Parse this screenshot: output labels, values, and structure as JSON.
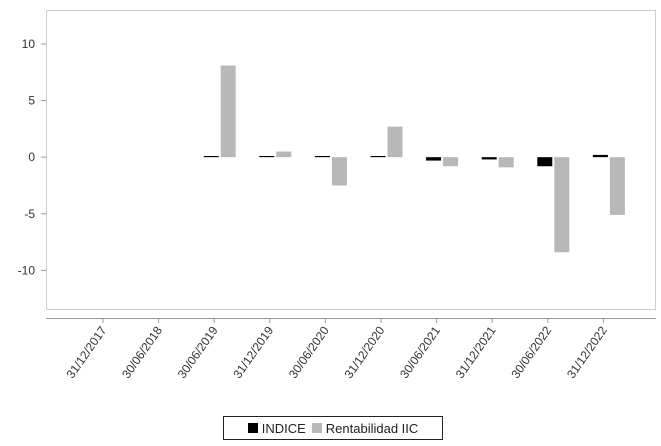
{
  "chart_data": {
    "type": "bar",
    "categories": [
      "31/12/2017",
      "30/06/2018",
      "30/06/2019",
      "31/12/2019",
      "30/06/2020",
      "31/12/2020",
      "30/06/2021",
      "31/12/2021",
      "30/06/2022",
      "31/12/2022"
    ],
    "series": [
      {
        "name": "INDICE",
        "color": "#000000",
        "values": [
          null,
          null,
          0.0,
          0.1,
          0.1,
          0.0,
          -0.3,
          -0.2,
          -0.8,
          0.2
        ]
      },
      {
        "name": "Rentabilidad IIC",
        "color": "#b8b8b8",
        "values": [
          null,
          null,
          8.1,
          0.5,
          -2.5,
          2.7,
          -0.8,
          -0.9,
          -8.4,
          -5.1
        ]
      }
    ],
    "ylim": [
      -13.5,
      13.0
    ],
    "yticks": [
      10,
      5,
      0,
      -5,
      -10
    ],
    "grid": false,
    "legend_position": "bottom-center",
    "title": "",
    "xlabel": "",
    "ylabel": ""
  }
}
